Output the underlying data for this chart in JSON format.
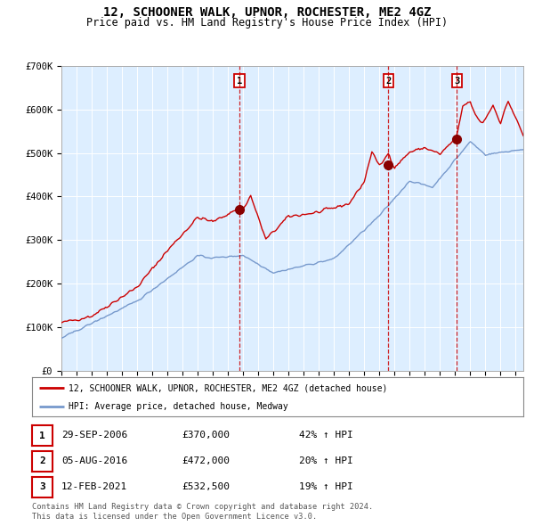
{
  "title": "12, SCHOONER WALK, UPNOR, ROCHESTER, ME2 4GZ",
  "subtitle": "Price paid vs. HM Land Registry's House Price Index (HPI)",
  "legend_label_red": "12, SCHOONER WALK, UPNOR, ROCHESTER, ME2 4GZ (detached house)",
  "legend_label_blue": "HPI: Average price, detached house, Medway",
  "footer_line1": "Contains HM Land Registry data © Crown copyright and database right 2024.",
  "footer_line2": "This data is licensed under the Open Government Licence v3.0.",
  "sales": [
    {
      "label": "1",
      "date": "29-SEP-2006",
      "price": "£370,000",
      "pct": "42% ↑ HPI"
    },
    {
      "label": "2",
      "date": "05-AUG-2016",
      "price": "£472,000",
      "pct": "20% ↑ HPI"
    },
    {
      "label": "3",
      "date": "12-FEB-2021",
      "price": "£532,500",
      "pct": "19% ↑ HPI"
    }
  ],
  "sale_dates_decimal": [
    2006.747,
    2016.589,
    2021.112
  ],
  "sale_prices": [
    370000,
    472000,
    532500
  ],
  "vline_color": "#cc0000",
  "dot_color": "#880000",
  "red_line_color": "#cc0000",
  "blue_line_color": "#7799cc",
  "bg_color": "#ddeeff",
  "grid_color": "#ffffff",
  "label_box_color": "#cc0000",
  "ylim": [
    0,
    700000
  ],
  "xlim_start": 1995.0,
  "xlim_end": 2025.5
}
